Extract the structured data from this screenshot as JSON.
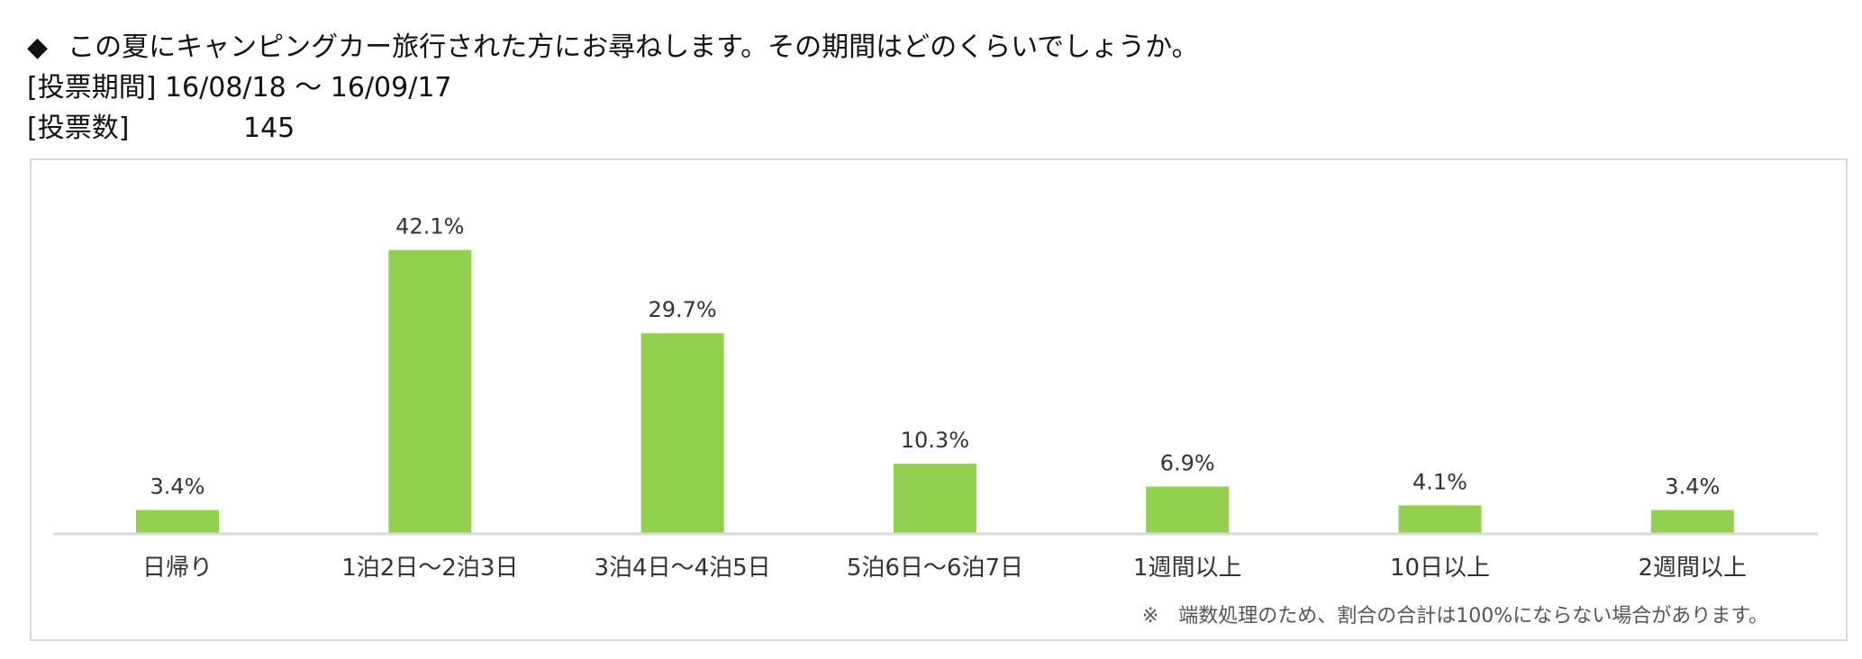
{
  "header": {
    "title_marker": "◆",
    "title": "この夏にキャンピングカー旅行された方にお尋ねします。その期間はどのくらいでしょうか。",
    "period_label": "[投票期間]",
    "period_value": "16/08/18 ～ 16/09/17",
    "votes_label": "[投票数]",
    "votes_value": "145"
  },
  "chart_data": {
    "type": "bar",
    "title": "",
    "xlabel": "",
    "ylabel": "",
    "categories": [
      "日帰り",
      "1泊2日～2泊3日",
      "3泊4日～4泊5日",
      "5泊6日～6泊7日",
      "1週間以上",
      "10日以上",
      "2週間以上"
    ],
    "values": [
      3.4,
      42.1,
      29.7,
      10.3,
      6.9,
      4.1,
      3.4
    ],
    "value_labels": [
      "3.4%",
      "42.1%",
      "29.7%",
      "10.3%",
      "6.9%",
      "4.1%",
      "3.4%"
    ],
    "ylim": [
      0,
      45
    ],
    "grid": false,
    "legend": "none",
    "colors": {
      "bar": "#92d050",
      "axis": "#d9d9d9"
    }
  },
  "footnote": "※　端数処理のため、割合の合計は100%にならない場合があります。"
}
